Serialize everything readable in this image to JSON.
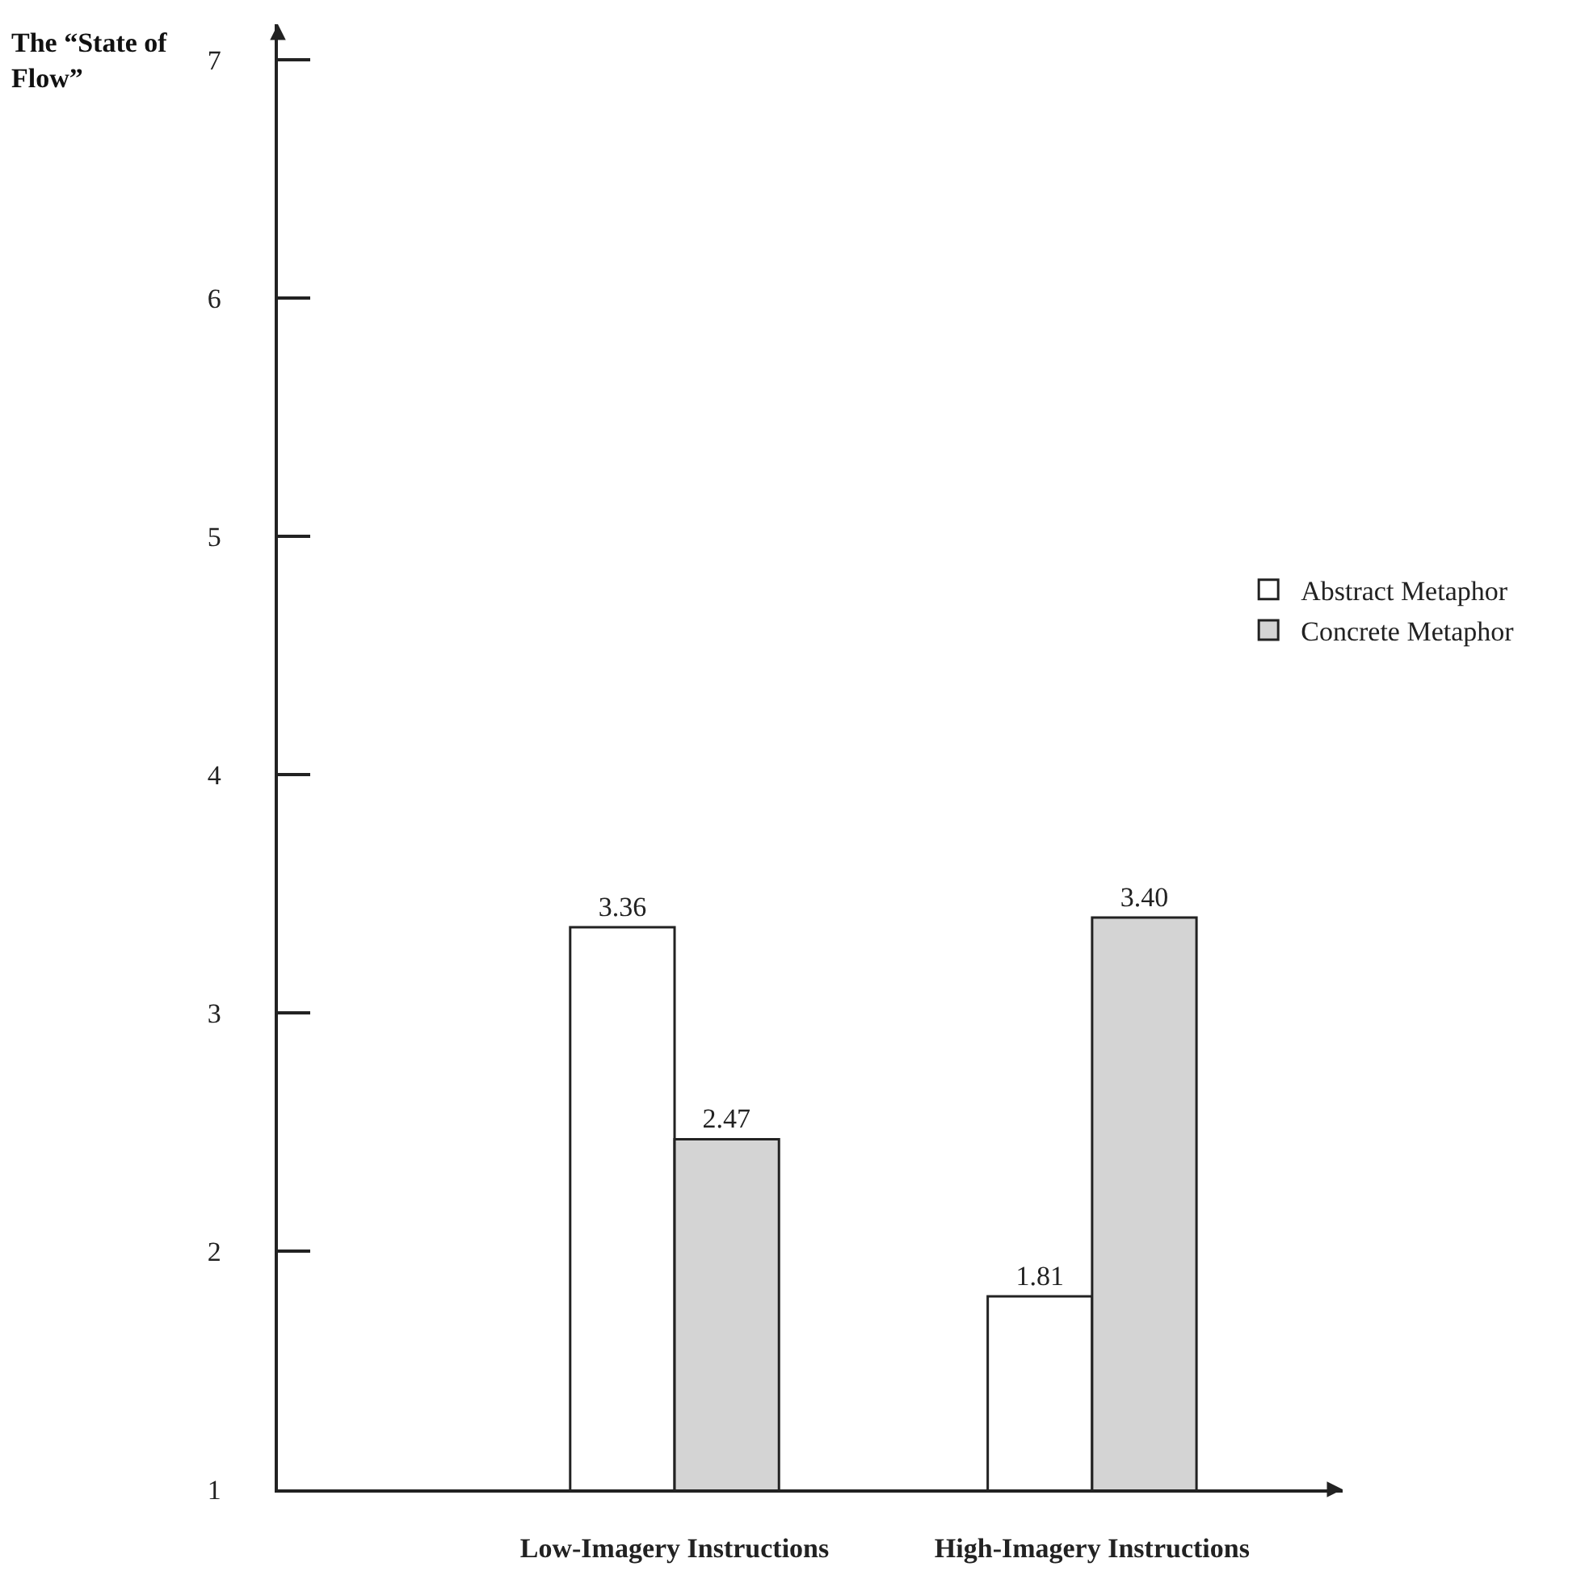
{
  "chart_data": {
    "type": "bar",
    "ylabel": "The “State of Flow”",
    "categories": [
      "Low-Imagery Instructions",
      "High-Imagery Instructions"
    ],
    "series": [
      {
        "name": "Abstract Metaphor",
        "color": "#ffffff",
        "values": [
          3.36,
          1.81
        ],
        "value_labels": [
          "3.36",
          "1.81"
        ]
      },
      {
        "name": "Concrete Metaphor",
        "color": "#d4d4d4",
        "values": [
          2.47,
          3.4
        ],
        "value_labels": [
          "2.47",
          "3.40"
        ]
      }
    ],
    "ylim": [
      1,
      7.15
    ],
    "yticks": [
      1,
      2,
      3,
      4,
      5,
      6,
      7
    ],
    "grid": false,
    "legend": "right"
  }
}
